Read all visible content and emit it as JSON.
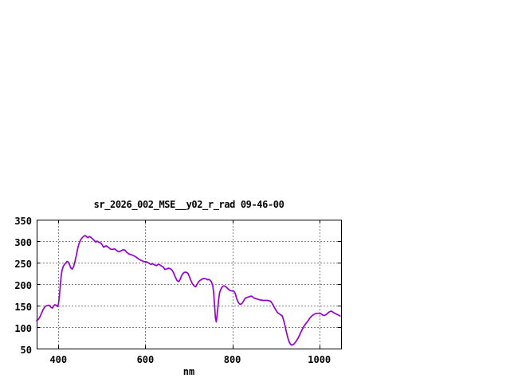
{
  "colors": {
    "background": "#ffffff",
    "line": "#9400d3",
    "grid": "#848484",
    "axis": "#000000",
    "text": "#000000"
  },
  "chart_data": {
    "type": "line",
    "title": "sr_2026_002_MSE__y02_r_rad 09-46-00",
    "xlabel": "nm",
    "ylabel": "",
    "xlim": [
      350,
      1050
    ],
    "ylim": [
      50,
      350
    ],
    "x_ticks": [
      400,
      600,
      800,
      1000
    ],
    "y_ticks": [
      50,
      100,
      150,
      200,
      250,
      300,
      350
    ],
    "grid": true,
    "legend": "none",
    "line_color": "#9400d3",
    "points": [
      [
        350,
        115
      ],
      [
        353,
        117
      ],
      [
        356,
        121
      ],
      [
        359,
        127
      ],
      [
        362,
        134
      ],
      [
        365,
        141
      ],
      [
        368,
        146
      ],
      [
        371,
        149
      ],
      [
        374,
        150
      ],
      [
        377,
        151
      ],
      [
        380,
        150
      ],
      [
        383,
        146
      ],
      [
        386,
        144
      ],
      [
        389,
        149
      ],
      [
        392,
        152
      ],
      [
        395,
        151
      ],
      [
        398,
        148
      ],
      [
        400,
        153
      ],
      [
        402,
        170
      ],
      [
        404,
        192
      ],
      [
        406,
        216
      ],
      [
        408,
        231
      ],
      [
        411,
        241
      ],
      [
        414,
        246
      ],
      [
        417,
        249
      ],
      [
        420,
        253
      ],
      [
        423,
        251
      ],
      [
        426,
        244
      ],
      [
        429,
        237
      ],
      [
        432,
        235
      ],
      [
        435,
        241
      ],
      [
        438,
        252
      ],
      [
        441,
        266
      ],
      [
        444,
        281
      ],
      [
        447,
        293
      ],
      [
        450,
        301
      ],
      [
        453,
        306
      ],
      [
        456,
        309
      ],
      [
        459,
        312
      ],
      [
        462,
        313
      ],
      [
        465,
        310
      ],
      [
        468,
        308
      ],
      [
        471,
        311
      ],
      [
        474,
        309
      ],
      [
        477,
        307
      ],
      [
        480,
        304
      ],
      [
        483,
        301
      ],
      [
        486,
        298
      ],
      [
        489,
        300
      ],
      [
        492,
        298
      ],
      [
        495,
        297
      ],
      [
        498,
        295
      ],
      [
        501,
        291
      ],
      [
        504,
        286
      ],
      [
        507,
        288
      ],
      [
        510,
        289
      ],
      [
        513,
        287
      ],
      [
        517,
        284
      ],
      [
        521,
        281
      ],
      [
        525,
        281
      ],
      [
        529,
        282
      ],
      [
        533,
        279
      ],
      [
        537,
        276
      ],
      [
        541,
        276
      ],
      [
        545,
        278
      ],
      [
        549,
        280
      ],
      [
        553,
        279
      ],
      [
        557,
        274
      ],
      [
        561,
        271
      ],
      [
        565,
        269
      ],
      [
        569,
        268
      ],
      [
        573,
        266
      ],
      [
        577,
        264
      ],
      [
        581,
        261
      ],
      [
        585,
        258
      ],
      [
        589,
        256
      ],
      [
        593,
        254
      ],
      [
        597,
        252
      ],
      [
        601,
        252
      ],
      [
        605,
        251
      ],
      [
        609,
        248
      ],
      [
        613,
        246
      ],
      [
        617,
        247
      ],
      [
        621,
        245
      ],
      [
        625,
        243
      ],
      [
        629,
        246
      ],
      [
        633,
        245
      ],
      [
        637,
        242
      ],
      [
        641,
        240
      ],
      [
        645,
        234
      ],
      [
        649,
        235
      ],
      [
        653,
        237
      ],
      [
        657,
        236
      ],
      [
        661,
        233
      ],
      [
        665,
        226
      ],
      [
        669,
        216
      ],
      [
        673,
        208
      ],
      [
        677,
        206
      ],
      [
        680,
        211
      ],
      [
        683,
        219
      ],
      [
        686,
        224
      ],
      [
        689,
        227
      ],
      [
        692,
        228
      ],
      [
        695,
        227
      ],
      [
        698,
        225
      ],
      [
        701,
        218
      ],
      [
        704,
        210
      ],
      [
        707,
        203
      ],
      [
        710,
        198
      ],
      [
        713,
        195
      ],
      [
        716,
        194
      ],
      [
        719,
        200
      ],
      [
        722,
        205
      ],
      [
        725,
        208
      ],
      [
        728,
        210
      ],
      [
        731,
        212
      ],
      [
        734,
        213
      ],
      [
        737,
        213
      ],
      [
        740,
        212
      ],
      [
        743,
        210
      ],
      [
        746,
        211
      ],
      [
        749,
        209
      ],
      [
        752,
        205
      ],
      [
        755,
        196
      ],
      [
        757,
        180
      ],
      [
        759,
        152
      ],
      [
        761,
        122
      ],
      [
        763,
        112
      ],
      [
        765,
        129
      ],
      [
        767,
        149
      ],
      [
        769,
        169
      ],
      [
        771,
        181
      ],
      [
        774,
        189
      ],
      [
        777,
        194
      ],
      [
        780,
        196
      ],
      [
        783,
        195
      ],
      [
        786,
        193
      ],
      [
        789,
        190
      ],
      [
        792,
        187
      ],
      [
        795,
        185
      ],
      [
        798,
        184
      ],
      [
        801,
        184
      ],
      [
        804,
        183
      ],
      [
        807,
        177
      ],
      [
        810,
        166
      ],
      [
        813,
        159
      ],
      [
        816,
        154
      ],
      [
        819,
        153
      ],
      [
        822,
        155
      ],
      [
        825,
        159
      ],
      [
        828,
        165
      ],
      [
        831,
        168
      ],
      [
        834,
        169
      ],
      [
        837,
        170
      ],
      [
        840,
        171
      ],
      [
        843,
        172
      ],
      [
        846,
        171
      ],
      [
        849,
        168
      ],
      [
        852,
        167
      ],
      [
        855,
        166
      ],
      [
        858,
        165
      ],
      [
        861,
        164
      ],
      [
        864,
        163
      ],
      [
        867,
        163
      ],
      [
        870,
        162
      ],
      [
        873,
        162
      ],
      [
        876,
        162
      ],
      [
        879,
        162
      ],
      [
        882,
        162
      ],
      [
        885,
        161
      ],
      [
        888,
        160
      ],
      [
        891,
        156
      ],
      [
        894,
        151
      ],
      [
        897,
        145
      ],
      [
        900,
        140
      ],
      [
        903,
        135
      ],
      [
        906,
        132
      ],
      [
        909,
        130
      ],
      [
        912,
        128
      ],
      [
        915,
        126
      ],
      [
        918,
        115
      ],
      [
        921,
        104
      ],
      [
        924,
        90
      ],
      [
        927,
        77
      ],
      [
        930,
        67
      ],
      [
        933,
        61
      ],
      [
        936,
        58
      ],
      [
        939,
        59
      ],
      [
        942,
        61
      ],
      [
        945,
        65
      ],
      [
        948,
        69
      ],
      [
        951,
        74
      ],
      [
        954,
        80
      ],
      [
        957,
        87
      ],
      [
        960,
        93
      ],
      [
        963,
        99
      ],
      [
        966,
        104
      ],
      [
        969,
        108
      ],
      [
        972,
        112
      ],
      [
        975,
        116
      ],
      [
        978,
        121
      ],
      [
        981,
        124
      ],
      [
        984,
        127
      ],
      [
        987,
        129
      ],
      [
        990,
        131
      ],
      [
        993,
        132
      ],
      [
        996,
        132
      ],
      [
        1000,
        132
      ],
      [
        1004,
        131
      ],
      [
        1008,
        128
      ],
      [
        1012,
        127
      ],
      [
        1016,
        129
      ],
      [
        1020,
        133
      ],
      [
        1024,
        136
      ],
      [
        1028,
        137
      ],
      [
        1032,
        134
      ],
      [
        1036,
        132
      ],
      [
        1040,
        130
      ],
      [
        1044,
        128
      ],
      [
        1048,
        126
      ]
    ]
  }
}
